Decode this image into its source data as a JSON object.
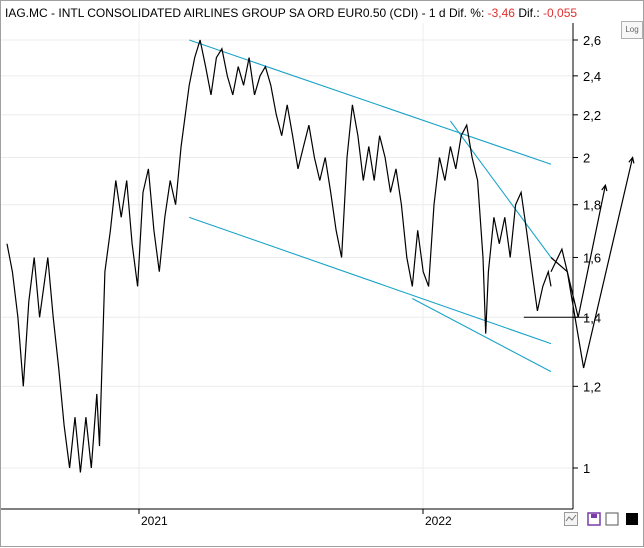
{
  "header": {
    "ticker": "IAG.MC",
    "description": "INTL CONSOLIDATED AIRLINES GROUP SA ORD EUR0.50 (CDI)",
    "interval": "1 d",
    "dif_pct_label": "Dif. %:",
    "dif_pct_value": "-3,46",
    "dif_label": "Dif.:",
    "dif_value": "-0,055"
  },
  "controls": {
    "log_label": "Log"
  },
  "colors": {
    "price": "#000000",
    "channel": "#1ba3c8",
    "negative": "#e03030"
  },
  "chart_data": {
    "type": "line",
    "scale": "log",
    "ylim": [
      0.95,
      2.7
    ],
    "y_ticks": [
      {
        "value": 2.6,
        "label": "2,6"
      },
      {
        "value": 2.4,
        "label": "2,4"
      },
      {
        "value": 2.2,
        "label": "2,2"
      },
      {
        "value": 2,
        "label": "2"
      },
      {
        "value": 1.8,
        "label": "1,8"
      },
      {
        "value": 1.6,
        "label": "1,6"
      },
      {
        "value": 1.4,
        "label": "1,4"
      },
      {
        "value": 1.2,
        "label": "1,2"
      },
      {
        "value": 1,
        "label": "1"
      }
    ],
    "x_ticks": [
      "2021",
      "2022"
    ],
    "price": [
      [
        0.0,
        1.65
      ],
      [
        0.01,
        1.55
      ],
      [
        0.02,
        1.4
      ],
      [
        0.03,
        1.2
      ],
      [
        0.04,
        1.45
      ],
      [
        0.05,
        1.6
      ],
      [
        0.06,
        1.4
      ],
      [
        0.075,
        1.6
      ],
      [
        0.085,
        1.4
      ],
      [
        0.095,
        1.25
      ],
      [
        0.105,
        1.1
      ],
      [
        0.115,
        1.0
      ],
      [
        0.125,
        1.12
      ],
      [
        0.135,
        0.99
      ],
      [
        0.145,
        1.12
      ],
      [
        0.155,
        1.0
      ],
      [
        0.165,
        1.18
      ],
      [
        0.17,
        1.05
      ],
      [
        0.18,
        1.55
      ],
      [
        0.19,
        1.7
      ],
      [
        0.2,
        1.9
      ],
      [
        0.21,
        1.75
      ],
      [
        0.22,
        1.9
      ],
      [
        0.23,
        1.65
      ],
      [
        0.24,
        1.5
      ],
      [
        0.25,
        1.85
      ],
      [
        0.26,
        1.95
      ],
      [
        0.27,
        1.7
      ],
      [
        0.28,
        1.55
      ],
      [
        0.29,
        1.75
      ],
      [
        0.3,
        1.9
      ],
      [
        0.31,
        1.8
      ],
      [
        0.32,
        2.05
      ],
      [
        0.335,
        2.35
      ],
      [
        0.345,
        2.5
      ],
      [
        0.355,
        2.6
      ],
      [
        0.365,
        2.45
      ],
      [
        0.375,
        2.3
      ],
      [
        0.385,
        2.5
      ],
      [
        0.395,
        2.55
      ],
      [
        0.405,
        2.4
      ],
      [
        0.415,
        2.3
      ],
      [
        0.425,
        2.45
      ],
      [
        0.435,
        2.35
      ],
      [
        0.445,
        2.5
      ],
      [
        0.455,
        2.3
      ],
      [
        0.465,
        2.4
      ],
      [
        0.475,
        2.45
      ],
      [
        0.485,
        2.35
      ],
      [
        0.495,
        2.2
      ],
      [
        0.505,
        2.1
      ],
      [
        0.515,
        2.25
      ],
      [
        0.525,
        2.1
      ],
      [
        0.535,
        1.95
      ],
      [
        0.545,
        2.05
      ],
      [
        0.555,
        2.15
      ],
      [
        0.565,
        2.0
      ],
      [
        0.575,
        1.9
      ],
      [
        0.585,
        2.0
      ],
      [
        0.595,
        1.85
      ],
      [
        0.605,
        1.7
      ],
      [
        0.615,
        1.6
      ],
      [
        0.625,
        2.0
      ],
      [
        0.635,
        2.25
      ],
      [
        0.645,
        2.1
      ],
      [
        0.655,
        1.9
      ],
      [
        0.665,
        2.05
      ],
      [
        0.675,
        1.9
      ],
      [
        0.685,
        2.1
      ],
      [
        0.695,
        2.0
      ],
      [
        0.705,
        1.85
      ],
      [
        0.715,
        1.95
      ],
      [
        0.725,
        1.8
      ],
      [
        0.735,
        1.6
      ],
      [
        0.745,
        1.5
      ],
      [
        0.755,
        1.7
      ],
      [
        0.765,
        1.55
      ],
      [
        0.775,
        1.5
      ],
      [
        0.785,
        1.8
      ],
      [
        0.795,
        2.0
      ],
      [
        0.805,
        1.9
      ],
      [
        0.815,
        2.05
      ],
      [
        0.825,
        1.95
      ],
      [
        0.835,
        2.1
      ],
      [
        0.845,
        2.15
      ],
      [
        0.855,
        2.0
      ],
      [
        0.865,
        1.9
      ],
      [
        0.875,
        1.6
      ],
      [
        0.88,
        1.35
      ],
      [
        0.885,
        1.55
      ],
      [
        0.895,
        1.75
      ],
      [
        0.905,
        1.65
      ],
      [
        0.915,
        1.75
      ],
      [
        0.925,
        1.6
      ],
      [
        0.935,
        1.8
      ],
      [
        0.945,
        1.85
      ],
      [
        0.955,
        1.7
      ],
      [
        0.965,
        1.55
      ],
      [
        0.975,
        1.42
      ],
      [
        0.985,
        1.5
      ],
      [
        0.995,
        1.55
      ],
      [
        1.0,
        1.5
      ]
    ],
    "channel_lines": [
      [
        [
          0.335,
          2.6
        ],
        [
          1.0,
          1.97
        ]
      ],
      [
        [
          0.335,
          1.75
        ],
        [
          1.0,
          1.32
        ]
      ],
      [
        [
          0.815,
          2.17
        ],
        [
          1.0,
          1.6
        ]
      ],
      [
        [
          0.745,
          1.46
        ],
        [
          1.0,
          1.24
        ]
      ]
    ],
    "support_line": {
      "x": [
        0.95,
        1.07
      ],
      "y": 1.4
    },
    "projections": [
      [
        [
          1.0,
          1.55
        ],
        [
          1.02,
          1.63
        ],
        [
          1.05,
          1.4
        ],
        [
          1.1,
          1.88
        ]
      ],
      [
        [
          1.0,
          1.6
        ],
        [
          1.03,
          1.55
        ],
        [
          1.06,
          1.25
        ],
        [
          1.15,
          2.0
        ]
      ]
    ]
  }
}
